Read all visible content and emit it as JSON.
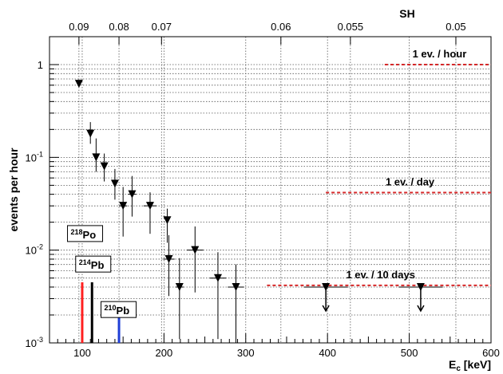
{
  "chart_data": {
    "type": "scatter",
    "title": "",
    "xlabel": "E",
    "xlabel_sub": "c",
    "xlabel_unit": " [keV]",
    "ylabel": "events per hour",
    "top_axis_label": "SH",
    "xlim": [
      60,
      600
    ],
    "ylim": [
      0.001,
      2
    ],
    "y_scale": "log",
    "grid": true,
    "x_ticks": [
      100,
      200,
      300,
      400,
      500,
      600
    ],
    "x_tick_labels": [
      "100",
      "200",
      "300",
      "400",
      "500",
      "600"
    ],
    "y_ticks": [
      0.001,
      0.01,
      0.1,
      1
    ],
    "top_ticks": [
      {
        "label": "0.09",
        "x": 96
      },
      {
        "label": "0.08",
        "x": 145
      },
      {
        "label": "0.07",
        "x": 197
      },
      {
        "label": "0.06",
        "x": 343
      },
      {
        "label": "0.055",
        "x": 428
      },
      {
        "label": "0.05",
        "x": 557
      }
    ],
    "points": [
      {
        "x": 96,
        "y": 0.62,
        "xerr": 0,
        "ylo": 0.6,
        "yhi": 0.64
      },
      {
        "x": 110,
        "y": 0.18,
        "xerr": 0,
        "ylo": 0.14,
        "yhi": 0.24
      },
      {
        "x": 117,
        "y": 0.1,
        "xerr": 0,
        "ylo": 0.07,
        "yhi": 0.16
      },
      {
        "x": 127,
        "y": 0.08,
        "xerr": 0,
        "ylo": 0.055,
        "yhi": 0.11
      },
      {
        "x": 140,
        "y": 0.052,
        "xerr": 0,
        "ylo": 0.035,
        "yhi": 0.075
      },
      {
        "x": 150,
        "y": 0.03,
        "xerr": 5,
        "ylo": 0.014,
        "yhi": 0.048
      },
      {
        "x": 161,
        "y": 0.04,
        "xerr": 5,
        "ylo": 0.023,
        "yhi": 0.063
      },
      {
        "x": 183,
        "y": 0.03,
        "xerr": 8,
        "ylo": 0.015,
        "yhi": 0.042
      },
      {
        "x": 204,
        "y": 0.021,
        "xerr": 0,
        "ylo": 0.012,
        "yhi": 0.028
      },
      {
        "x": 206,
        "y": 0.008,
        "xerr": 7,
        "ylo": 0.0032,
        "yhi": 0.0145
      },
      {
        "x": 219,
        "y": 0.004,
        "xerr": 5,
        "ylo": 0.0011,
        "yhi": 0.0082
      },
      {
        "x": 238,
        "y": 0.01,
        "xerr": 10,
        "ylo": 0.0035,
        "yhi": 0.018
      },
      {
        "x": 266,
        "y": 0.005,
        "xerr": 10,
        "ylo": 0.0011,
        "yhi": 0.0095
      },
      {
        "x": 288,
        "y": 0.004,
        "xerr": 10,
        "ylo": 0.001,
        "yhi": 0.007
      }
    ],
    "upper_limits": [
      {
        "x": 398,
        "y": 0.004,
        "xerr": 27
      },
      {
        "x": 514,
        "y": 0.004,
        "xerr": 27
      }
    ],
    "reference_lines": [
      {
        "label": "1 ev. / hour",
        "y": 1,
        "x_from": 470,
        "x_to": 600,
        "color": "#d62728"
      },
      {
        "label": "1 ev. / day",
        "y": 0.0417,
        "x_from": 398,
        "x_to": 600,
        "color": "#d62728"
      },
      {
        "label": "1 ev. / 10 days",
        "y": 0.00417,
        "x_from": 326,
        "x_to": 600,
        "color": "#d62728"
      }
    ],
    "isotope_lines": [
      {
        "mass": "218",
        "element": "Po",
        "x": 100,
        "y_top": 0.0045,
        "color": "#ff2020",
        "label_x": 82,
        "label_y": 0.0145
      },
      {
        "mass": "214",
        "element": "Pb",
        "x": 112,
        "y_top": 0.0045,
        "color": "#000000",
        "label_x": 92,
        "label_y": 0.0068
      },
      {
        "mass": "210",
        "element": "Pb",
        "x": 145,
        "y_top": 0.0021,
        "color": "#1f3fd6",
        "label_x": 123,
        "label_y": 0.0022
      }
    ]
  }
}
